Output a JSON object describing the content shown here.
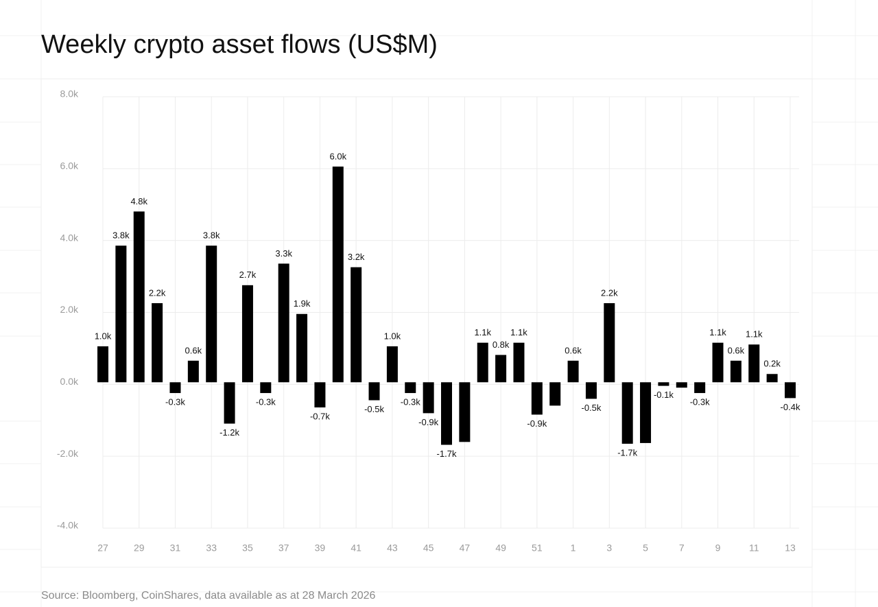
{
  "chart_data": {
    "type": "bar",
    "title": "Weekly crypto asset flows (US$M)",
    "source": "Source: Bloomberg, CoinShares, data available as at 28 March 2026",
    "categories": [
      "27",
      null,
      "29",
      null,
      "31",
      null,
      "33",
      null,
      "35",
      null,
      "37",
      null,
      "39",
      null,
      "41",
      null,
      "43",
      null,
      "45",
      null,
      "47",
      null,
      "49",
      null,
      "51",
      null,
      "1",
      null,
      "3",
      null,
      "5",
      null,
      "7",
      null,
      "9",
      null,
      "11",
      null,
      "13"
    ],
    "values": [
      1000,
      3800,
      4750,
      2200,
      -300,
      600,
      3800,
      -1150,
      2700,
      -300,
      3300,
      1900,
      -700,
      6000,
      3200,
      -500,
      1000,
      -300,
      -860,
      -1740,
      -1660,
      1100,
      760,
      1100,
      -900,
      -650,
      600,
      -460,
      2200,
      -1710,
      -1690,
      -100,
      -150,
      -300,
      1100,
      600,
      1050,
      230,
      -440
    ],
    "value_labels": [
      "1.0k",
      "3.8k",
      "4.8k",
      "2.2k",
      "-0.3k",
      "0.6k",
      "3.8k",
      "-1.2k",
      "2.7k",
      "-0.3k",
      "3.3k",
      "1.9k",
      "-0.7k",
      "6.0k",
      "3.2k",
      "-0.5k",
      "1.0k",
      "-0.3k",
      "-0.9k",
      "-1.7k",
      null,
      "1.1k",
      "0.8k",
      "1.1k",
      "-0.9k",
      null,
      "0.6k",
      "-0.5k",
      "2.2k",
      "-1.7k",
      null,
      "-0.1k",
      null,
      "-0.3k",
      "1.1k",
      "0.6k",
      "1.1k",
      "0.2k",
      "-0.4k"
    ],
    "color": "#000000",
    "ylim": [
      -4000,
      8000
    ],
    "yticks": [
      {
        "value": -4000,
        "label": "-4.0k"
      },
      {
        "value": -2000,
        "label": "-2.0k"
      },
      {
        "value": 0,
        "label": "0.0k"
      },
      {
        "value": 2000,
        "label": "2.0k"
      },
      {
        "value": 4000,
        "label": "4.0k"
      },
      {
        "value": 6000,
        "label": "6.0k"
      },
      {
        "value": 8000,
        "label": "8.0k"
      }
    ],
    "grid": true
  }
}
